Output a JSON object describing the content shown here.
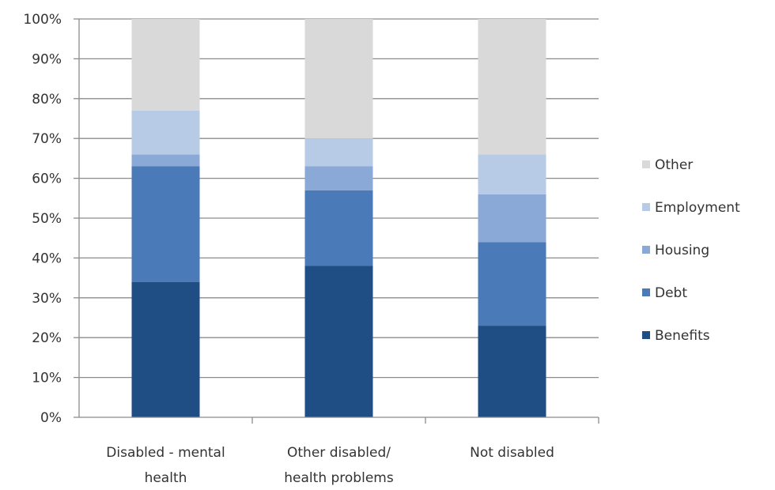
{
  "chart_data": {
    "type": "bar",
    "stacked": true,
    "percent": true,
    "categories": [
      [
        "Disabled - mental",
        "health"
      ],
      [
        "Other disabled/",
        "health problems"
      ],
      [
        "Not disabled"
      ]
    ],
    "series": [
      {
        "name": "Benefits",
        "color": "#1f4e84",
        "values": [
          34,
          38,
          23
        ]
      },
      {
        "name": "Debt",
        "color": "#4a7ab8",
        "values": [
          29,
          19,
          21
        ]
      },
      {
        "name": "Housing",
        "color": "#8aa9d6",
        "values": [
          3,
          6,
          12
        ]
      },
      {
        "name": "Employment",
        "color": "#b7cbe6",
        "values": [
          11,
          7,
          10
        ]
      },
      {
        "name": "Other",
        "color": "#d9d9d9",
        "values": [
          23,
          30,
          34
        ]
      }
    ],
    "ylim": [
      0,
      100
    ],
    "yticks": [
      "0%",
      "10%",
      "20%",
      "30%",
      "40%",
      "50%",
      "60%",
      "70%",
      "80%",
      "90%",
      "100%"
    ],
    "legend_order": [
      "Other",
      "Employment",
      "Housing",
      "Debt",
      "Benefits"
    ],
    "legend_position": "right",
    "grid": true
  }
}
